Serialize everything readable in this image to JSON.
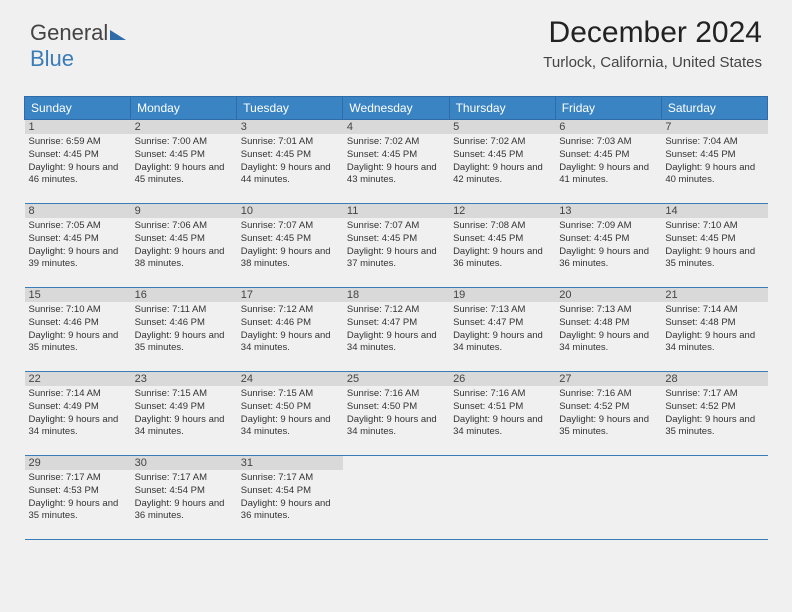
{
  "logo": {
    "text1": "General",
    "text2": "Blue"
  },
  "header": {
    "month_title": "December 2024",
    "location": "Turlock, California, United States"
  },
  "colors": {
    "header_bg": "#3a84c4",
    "header_text": "#ffffff",
    "daynum_bg": "#d9d9d9",
    "border": "#3a7cb8",
    "page_bg": "#f0f0f0",
    "logo_blue": "#3a7cb8"
  },
  "calendar": {
    "columns": [
      "Sunday",
      "Monday",
      "Tuesday",
      "Wednesday",
      "Thursday",
      "Friday",
      "Saturday"
    ],
    "weeks": [
      [
        {
          "day": "1",
          "sunrise": "Sunrise: 6:59 AM",
          "sunset": "Sunset: 4:45 PM",
          "daylight": "Daylight: 9 hours and 46 minutes."
        },
        {
          "day": "2",
          "sunrise": "Sunrise: 7:00 AM",
          "sunset": "Sunset: 4:45 PM",
          "daylight": "Daylight: 9 hours and 45 minutes."
        },
        {
          "day": "3",
          "sunrise": "Sunrise: 7:01 AM",
          "sunset": "Sunset: 4:45 PM",
          "daylight": "Daylight: 9 hours and 44 minutes."
        },
        {
          "day": "4",
          "sunrise": "Sunrise: 7:02 AM",
          "sunset": "Sunset: 4:45 PM",
          "daylight": "Daylight: 9 hours and 43 minutes."
        },
        {
          "day": "5",
          "sunrise": "Sunrise: 7:02 AM",
          "sunset": "Sunset: 4:45 PM",
          "daylight": "Daylight: 9 hours and 42 minutes."
        },
        {
          "day": "6",
          "sunrise": "Sunrise: 7:03 AM",
          "sunset": "Sunset: 4:45 PM",
          "daylight": "Daylight: 9 hours and 41 minutes."
        },
        {
          "day": "7",
          "sunrise": "Sunrise: 7:04 AM",
          "sunset": "Sunset: 4:45 PM",
          "daylight": "Daylight: 9 hours and 40 minutes."
        }
      ],
      [
        {
          "day": "8",
          "sunrise": "Sunrise: 7:05 AM",
          "sunset": "Sunset: 4:45 PM",
          "daylight": "Daylight: 9 hours and 39 minutes."
        },
        {
          "day": "9",
          "sunrise": "Sunrise: 7:06 AM",
          "sunset": "Sunset: 4:45 PM",
          "daylight": "Daylight: 9 hours and 38 minutes."
        },
        {
          "day": "10",
          "sunrise": "Sunrise: 7:07 AM",
          "sunset": "Sunset: 4:45 PM",
          "daylight": "Daylight: 9 hours and 38 minutes."
        },
        {
          "day": "11",
          "sunrise": "Sunrise: 7:07 AM",
          "sunset": "Sunset: 4:45 PM",
          "daylight": "Daylight: 9 hours and 37 minutes."
        },
        {
          "day": "12",
          "sunrise": "Sunrise: 7:08 AM",
          "sunset": "Sunset: 4:45 PM",
          "daylight": "Daylight: 9 hours and 36 minutes."
        },
        {
          "day": "13",
          "sunrise": "Sunrise: 7:09 AM",
          "sunset": "Sunset: 4:45 PM",
          "daylight": "Daylight: 9 hours and 36 minutes."
        },
        {
          "day": "14",
          "sunrise": "Sunrise: 7:10 AM",
          "sunset": "Sunset: 4:45 PM",
          "daylight": "Daylight: 9 hours and 35 minutes."
        }
      ],
      [
        {
          "day": "15",
          "sunrise": "Sunrise: 7:10 AM",
          "sunset": "Sunset: 4:46 PM",
          "daylight": "Daylight: 9 hours and 35 minutes."
        },
        {
          "day": "16",
          "sunrise": "Sunrise: 7:11 AM",
          "sunset": "Sunset: 4:46 PM",
          "daylight": "Daylight: 9 hours and 35 minutes."
        },
        {
          "day": "17",
          "sunrise": "Sunrise: 7:12 AM",
          "sunset": "Sunset: 4:46 PM",
          "daylight": "Daylight: 9 hours and 34 minutes."
        },
        {
          "day": "18",
          "sunrise": "Sunrise: 7:12 AM",
          "sunset": "Sunset: 4:47 PM",
          "daylight": "Daylight: 9 hours and 34 minutes."
        },
        {
          "day": "19",
          "sunrise": "Sunrise: 7:13 AM",
          "sunset": "Sunset: 4:47 PM",
          "daylight": "Daylight: 9 hours and 34 minutes."
        },
        {
          "day": "20",
          "sunrise": "Sunrise: 7:13 AM",
          "sunset": "Sunset: 4:48 PM",
          "daylight": "Daylight: 9 hours and 34 minutes."
        },
        {
          "day": "21",
          "sunrise": "Sunrise: 7:14 AM",
          "sunset": "Sunset: 4:48 PM",
          "daylight": "Daylight: 9 hours and 34 minutes."
        }
      ],
      [
        {
          "day": "22",
          "sunrise": "Sunrise: 7:14 AM",
          "sunset": "Sunset: 4:49 PM",
          "daylight": "Daylight: 9 hours and 34 minutes."
        },
        {
          "day": "23",
          "sunrise": "Sunrise: 7:15 AM",
          "sunset": "Sunset: 4:49 PM",
          "daylight": "Daylight: 9 hours and 34 minutes."
        },
        {
          "day": "24",
          "sunrise": "Sunrise: 7:15 AM",
          "sunset": "Sunset: 4:50 PM",
          "daylight": "Daylight: 9 hours and 34 minutes."
        },
        {
          "day": "25",
          "sunrise": "Sunrise: 7:16 AM",
          "sunset": "Sunset: 4:50 PM",
          "daylight": "Daylight: 9 hours and 34 minutes."
        },
        {
          "day": "26",
          "sunrise": "Sunrise: 7:16 AM",
          "sunset": "Sunset: 4:51 PM",
          "daylight": "Daylight: 9 hours and 34 minutes."
        },
        {
          "day": "27",
          "sunrise": "Sunrise: 7:16 AM",
          "sunset": "Sunset: 4:52 PM",
          "daylight": "Daylight: 9 hours and 35 minutes."
        },
        {
          "day": "28",
          "sunrise": "Sunrise: 7:17 AM",
          "sunset": "Sunset: 4:52 PM",
          "daylight": "Daylight: 9 hours and 35 minutes."
        }
      ],
      [
        {
          "day": "29",
          "sunrise": "Sunrise: 7:17 AM",
          "sunset": "Sunset: 4:53 PM",
          "daylight": "Daylight: 9 hours and 35 minutes."
        },
        {
          "day": "30",
          "sunrise": "Sunrise: 7:17 AM",
          "sunset": "Sunset: 4:54 PM",
          "daylight": "Daylight: 9 hours and 36 minutes."
        },
        {
          "day": "31",
          "sunrise": "Sunrise: 7:17 AM",
          "sunset": "Sunset: 4:54 PM",
          "daylight": "Daylight: 9 hours and 36 minutes."
        },
        null,
        null,
        null,
        null
      ]
    ]
  }
}
